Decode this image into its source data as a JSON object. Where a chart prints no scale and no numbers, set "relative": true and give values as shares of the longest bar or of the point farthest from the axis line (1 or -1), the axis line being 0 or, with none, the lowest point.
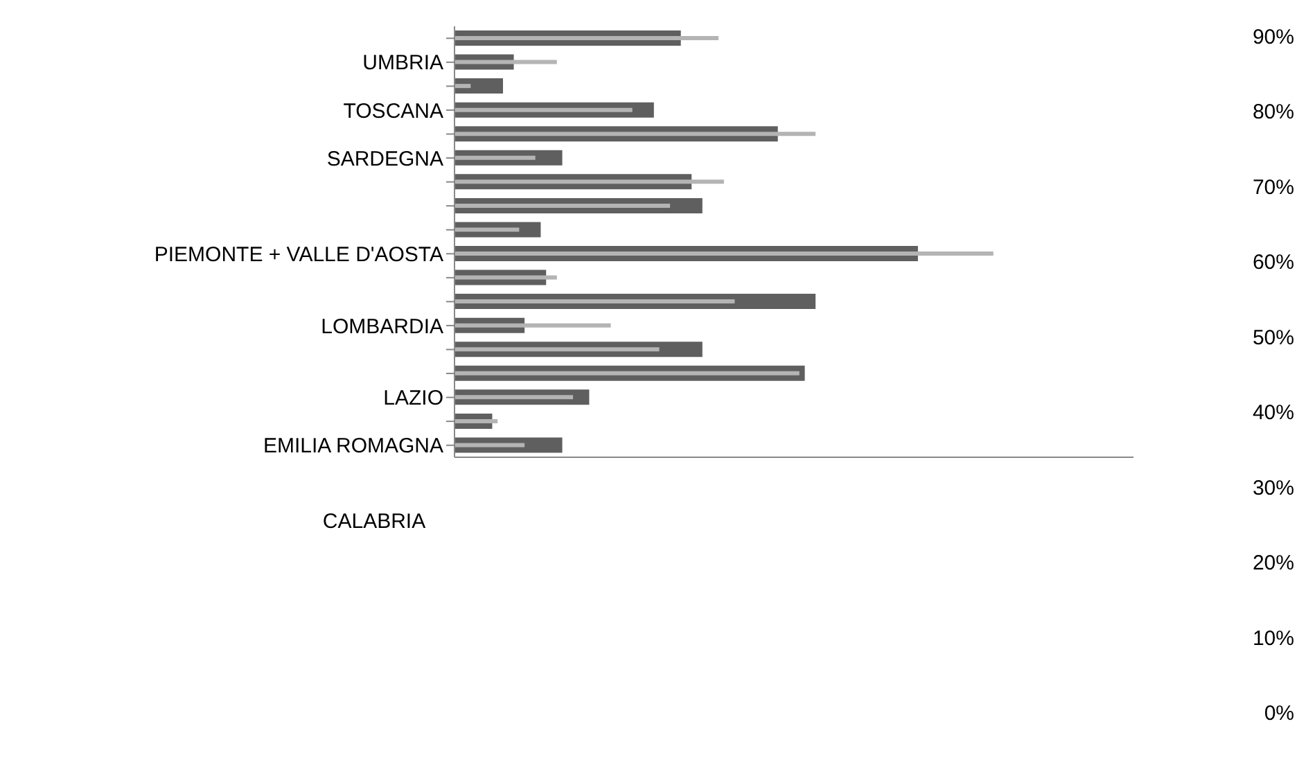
{
  "chart_data": {
    "type": "bar",
    "orientation": "horizontal",
    "relative": true,
    "categories": [
      null,
      "UMBRIA",
      null,
      "TOSCANA",
      null,
      "SARDEGNA",
      null,
      null,
      null,
      "PIEMONTE + VALLE D'AOSTA",
      null,
      null,
      "LOMBARDIA",
      null,
      null,
      "LAZIO",
      null,
      "EMILIA ROMAGNA"
    ],
    "series": [
      {
        "color": "#5f5f5f",
        "values": [
          0.42,
          0.11,
          0.09,
          0.37,
          0.6,
          0.2,
          0.44,
          0.46,
          0.16,
          0.86,
          0.17,
          0.67,
          0.13,
          0.46,
          0.65,
          0.25,
          0.07,
          0.2
        ]
      },
      {
        "color": "#b4b4b4",
        "values": [
          0.49,
          0.19,
          0.03,
          0.33,
          0.67,
          0.15,
          0.5,
          0.4,
          0.12,
          1,
          0.19,
          0.52,
          0.29,
          0.38,
          0.64,
          0.22,
          0.08,
          0.13
        ]
      }
    ],
    "y2lim": [
      0,
      90
    ],
    "y2ticks": [
      {
        "value": 0,
        "label": "0%"
      },
      {
        "value": 10,
        "label": "10%"
      },
      {
        "value": 20,
        "label": "20%"
      },
      {
        "value": 30,
        "label": "30%"
      },
      {
        "value": 40,
        "label": "40%"
      },
      {
        "value": 50,
        "label": "50%"
      },
      {
        "value": 60,
        "label": "60%"
      },
      {
        "value": 70,
        "label": "70%"
      },
      {
        "value": 80,
        "label": "80%"
      },
      {
        "value": 90,
        "label": "90%"
      }
    ],
    "annotations": [
      "CALABRIA"
    ]
  }
}
